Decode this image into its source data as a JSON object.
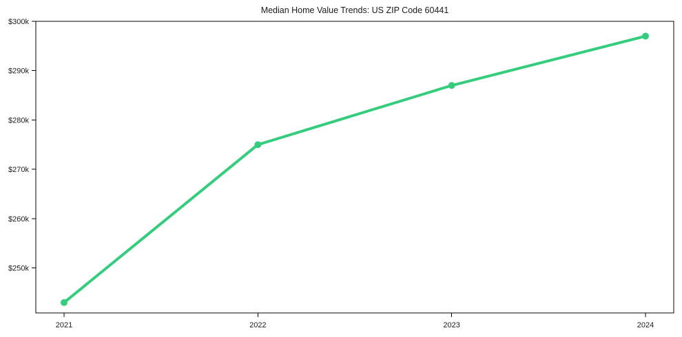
{
  "chart": {
    "title": "Median Home Value Trends: US ZIP Code 60441"
  },
  "chart_data": {
    "type": "line",
    "x": [
      "2021",
      "2022",
      "2023",
      "2024"
    ],
    "series": [
      {
        "name": "Median Home Value",
        "values": [
          243000,
          275000,
          287000,
          297000
        ]
      }
    ],
    "title": "Median Home Value Trends: US ZIP Code 60441",
    "xlabel": "",
    "ylabel": "",
    "ylim": [
      240900,
      300000
    ],
    "yticks": [
      250000,
      260000,
      270000,
      280000,
      290000,
      300000
    ],
    "ytick_labels": [
      "$250k",
      "$260k",
      "$270k",
      "$280k",
      "$290k",
      "$300k"
    ],
    "grid": false,
    "legend_position": "none",
    "line_color": "#35cd7d",
    "marker": "circle",
    "line_width": 4,
    "marker_radius": 5,
    "spine_color": "#000000",
    "text_color": "#1a1a1a",
    "tick_font_size": 11
  }
}
